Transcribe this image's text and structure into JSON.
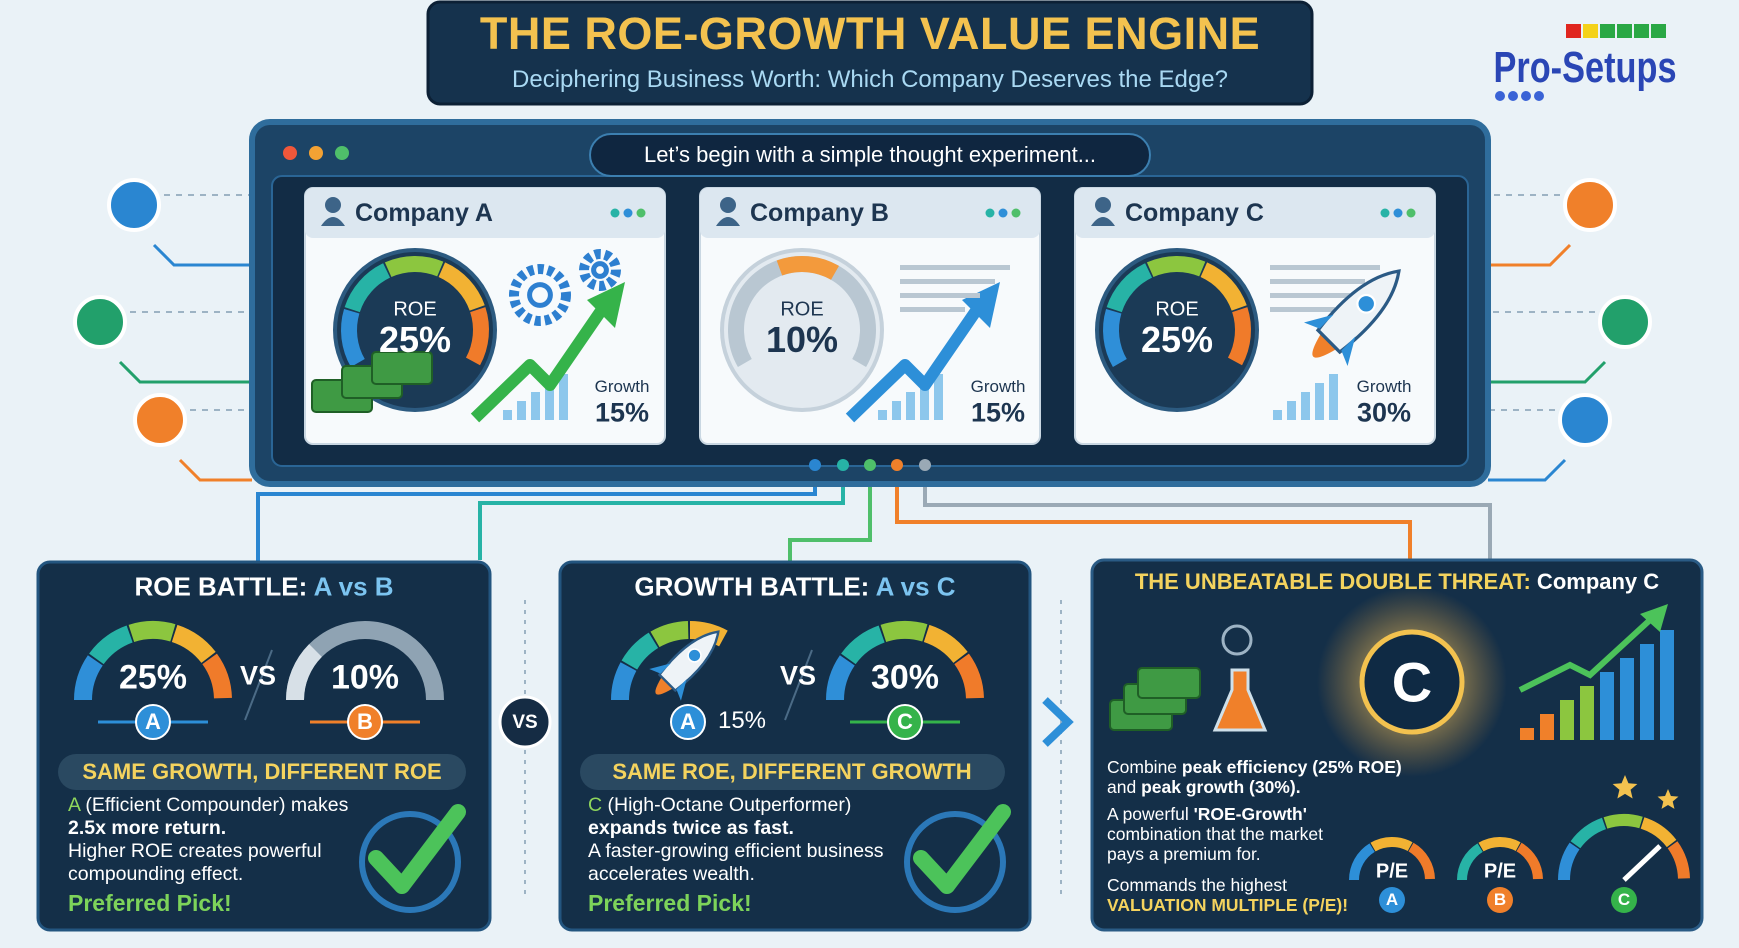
{
  "header": {
    "title": "THE ROE-GROWTH VALUE ENGINE",
    "subtitle": "Deciphering Business Worth: Which Company Deserves the Edge?"
  },
  "brand": "Pro-Setups",
  "panel": {
    "caption": "Let’s begin with a simple thought experiment...",
    "companies": [
      {
        "name": "Company A",
        "roe_label": "ROE",
        "roe": "25%",
        "growth_label": "Growth",
        "growth": "15%"
      },
      {
        "name": "Company B",
        "roe_label": "ROE",
        "roe": "10%",
        "growth_label": "Growth",
        "growth": "15%"
      },
      {
        "name": "Company C",
        "roe_label": "ROE",
        "roe": "25%",
        "growth_label": "Growth",
        "growth": "30%"
      }
    ]
  },
  "middle_vs": "VS",
  "battles": [
    {
      "title": "ROE BATTLE:",
      "title_emph": "A vs B",
      "left_value": "25%",
      "left_badge": "A",
      "vs": "VS",
      "right_value": "10%",
      "right_badge": "B",
      "banner": "SAME GROWTH, DIFFERENT ROE",
      "lead": "A",
      "lead_rest": "(Efficient Compounder) makes",
      "bold": "2.5x more return.",
      "text": "Higher ROE creates powerful compounding effect.",
      "pick": "Preferred Pick!"
    },
    {
      "title": "GROWTH BATTLE:",
      "title_emph": "A vs C",
      "left_value": "15%",
      "left_badge": "A",
      "vs": "VS",
      "right_value": "30%",
      "right_badge": "C",
      "banner": "SAME ROE, DIFFERENT GROWTH",
      "lead": "C",
      "lead_rest": "(High-Octane Outperformer)",
      "bold": "expands twice as fast.",
      "text": "A faster-growing efficient business accelerates wealth.",
      "pick": "Preferred Pick!"
    }
  ],
  "threat": {
    "title": "THE UNBEATABLE DOUBLE THREAT:",
    "title_rest": "Company C",
    "emblem": "C",
    "p1_a": "Combine",
    "p1_b": "peak efficiency (25% ROE)",
    "p1_c": "and",
    "p1_d": "peak growth (30%).",
    "p2_a": "A powerful",
    "p2_b": "'ROE-Growth'",
    "p2_c": "combination that the market pays a premium for.",
    "p3_a": "Commands the highest",
    "p3_b": "VALUATION MULTIPLE (P/E)!",
    "gauges": [
      {
        "label": "P/E",
        "badge": "A"
      },
      {
        "label": "P/E",
        "badge": "B"
      },
      {
        "badge": "C"
      }
    ]
  }
}
